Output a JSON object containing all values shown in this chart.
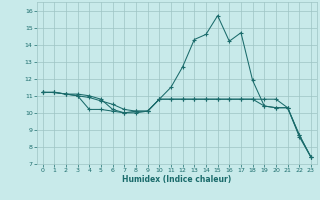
{
  "xlabel": "Humidex (Indice chaleur)",
  "xlim": [
    -0.5,
    23.5
  ],
  "ylim": [
    7,
    16.5
  ],
  "yticks": [
    7,
    8,
    9,
    10,
    11,
    12,
    13,
    14,
    15,
    16
  ],
  "xticks": [
    0,
    1,
    2,
    3,
    4,
    5,
    6,
    7,
    8,
    9,
    10,
    11,
    12,
    13,
    14,
    15,
    16,
    17,
    18,
    19,
    20,
    21,
    22,
    23
  ],
  "bg_color": "#c8eaea",
  "grid_color": "#9ec4c4",
  "line_color": "#1a6b6b",
  "line1_x": [
    0,
    1,
    2,
    3,
    4,
    5,
    6,
    7,
    8,
    9,
    10,
    11,
    12,
    13,
    14,
    15,
    16,
    17,
    18,
    19,
    20,
    21,
    22,
    23
  ],
  "line1_y": [
    11.2,
    11.2,
    11.1,
    11.1,
    11.0,
    10.8,
    10.2,
    10.0,
    10.0,
    10.1,
    10.8,
    10.8,
    10.8,
    10.8,
    10.8,
    10.8,
    10.8,
    10.8,
    10.8,
    10.8,
    10.8,
    10.3,
    8.6,
    7.4
  ],
  "line2_x": [
    0,
    1,
    2,
    3,
    4,
    5,
    6,
    7,
    8,
    9,
    10,
    11,
    12,
    13,
    14,
    15,
    16,
    17,
    18,
    19,
    20,
    21,
    22,
    23
  ],
  "line2_y": [
    11.2,
    11.2,
    11.1,
    11.0,
    10.9,
    10.7,
    10.5,
    10.2,
    10.1,
    10.1,
    10.8,
    11.5,
    12.7,
    14.3,
    14.6,
    15.7,
    14.2,
    14.7,
    11.9,
    10.4,
    10.3,
    10.3,
    8.7,
    7.4
  ],
  "line3_x": [
    0,
    1,
    2,
    3,
    4,
    5,
    6,
    7,
    8,
    9,
    10,
    11,
    12,
    13,
    14,
    15,
    16,
    17,
    18,
    19,
    20,
    21,
    22,
    23
  ],
  "line3_y": [
    11.2,
    11.2,
    11.1,
    11.0,
    10.2,
    10.2,
    10.1,
    10.0,
    10.1,
    10.1,
    10.8,
    10.8,
    10.8,
    10.8,
    10.8,
    10.8,
    10.8,
    10.8,
    10.8,
    10.4,
    10.3,
    10.3,
    8.7,
    7.4
  ]
}
